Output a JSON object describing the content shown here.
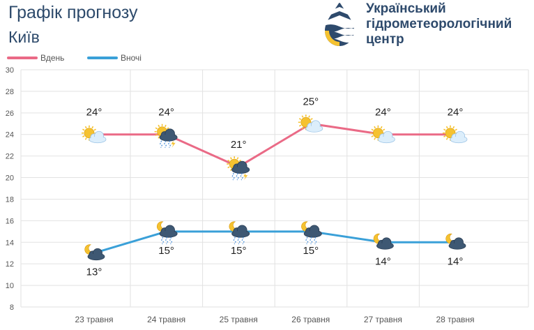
{
  "header": {
    "title": "Графік прогнозу",
    "city": "Київ"
  },
  "logo": {
    "lines": [
      "Український",
      "гідрометеорологічний",
      "центр"
    ]
  },
  "colors": {
    "day": "#ea6a86",
    "night": "#3aa0d8",
    "grid": "#e2e2e2",
    "axis_text": "#555555",
    "label_text": "#222222",
    "brand": "#2e4a6c",
    "sun": "#f5c230"
  },
  "chart_data": {
    "type": "line",
    "categories": [
      "23 травня",
      "24 травня",
      "25 травня",
      "26 травня",
      "27 травня",
      "28 травня"
    ],
    "ylim": [
      8,
      30
    ],
    "yticks": [
      8,
      10,
      12,
      14,
      16,
      18,
      20,
      22,
      24,
      26,
      28,
      30
    ],
    "grid": true,
    "legend": "top-left",
    "series": [
      {
        "key": "day",
        "name": "Вдень",
        "values": [
          24,
          24,
          21,
          25,
          24,
          24
        ],
        "labels": [
          "24°",
          "24°",
          "21°",
          "25°",
          "24°",
          "24°"
        ],
        "label_position": "above",
        "icons": [
          "sun-cloud-icon",
          "sun-storm-rain-icon",
          "sun-storm-rain-icon",
          "sun-cloud-icon",
          "sun-cloud-icon",
          "sun-cloud-icon"
        ]
      },
      {
        "key": "night",
        "name": "Вночі",
        "values": [
          13,
          15,
          15,
          15,
          14,
          14
        ],
        "labels": [
          "13°",
          "15°",
          "15°",
          "15°",
          "14°",
          "14°"
        ],
        "label_position": "below",
        "icons": [
          "moon-cloud-icon",
          "moon-cloud-rain-icon",
          "moon-cloud-rain-icon",
          "moon-cloud-rain-icon",
          "moon-cloud-icon",
          "moon-cloud-icon"
        ]
      }
    ]
  }
}
